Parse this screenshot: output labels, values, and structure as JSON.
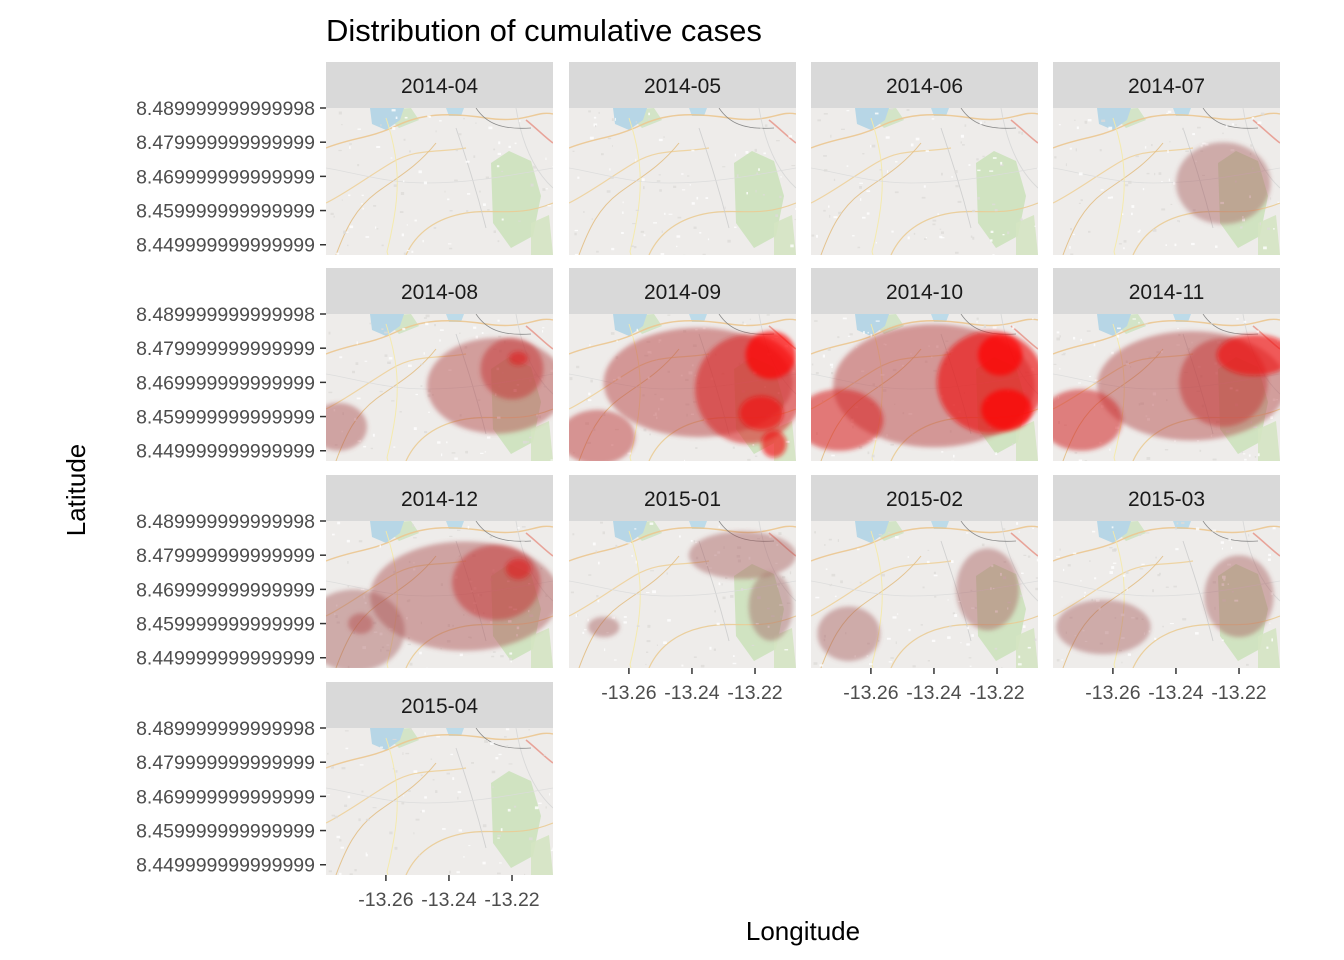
{
  "chart_data": {
    "type": "heatmap",
    "title": "Distribution of cumulative cases",
    "xlabel": "Longitude",
    "ylabel": "Latitude",
    "xlim": [
      -13.279,
      -13.207
    ],
    "ylim": [
      8.447,
      8.49
    ],
    "x_ticks": [
      -13.26,
      -13.24,
      -13.22
    ],
    "x_tick_labels": [
      "-13.26",
      "-13.24",
      "-13.22"
    ],
    "y_ticks": [
      8.489999999999998,
      8.479999999999999,
      8.469999999999999,
      8.459999999999999,
      8.45
    ],
    "y_tick_labels": [
      "8.489999999999998",
      "8.479999999999999",
      "8.469999999999999",
      "8.459999999999999",
      "8.449999999999999"
    ],
    "grid": false,
    "background": "map tiles",
    "fill_scale": {
      "low": "#808080",
      "high": "#ff0000"
    },
    "panels": [
      {
        "label": "2014-04",
        "blobs": []
      },
      {
        "label": "2014-05",
        "blobs": []
      },
      {
        "label": "2014-06",
        "blobs": []
      },
      {
        "label": "2014-07",
        "blobs": [
          {
            "x": -13.225,
            "y": 8.468,
            "rx": 0.015,
            "ry": 0.012,
            "level": 0.3
          }
        ]
      },
      {
        "label": "2014-08",
        "blobs": [
          {
            "x": -13.275,
            "y": 8.457,
            "rx": 0.009,
            "ry": 0.007,
            "level": 0.35
          },
          {
            "x": -13.225,
            "y": 8.469,
            "rx": 0.022,
            "ry": 0.014,
            "level": 0.4
          },
          {
            "x": -13.22,
            "y": 8.474,
            "rx": 0.01,
            "ry": 0.009,
            "level": 0.55
          },
          {
            "x": -13.218,
            "y": 8.477,
            "rx": 0.003,
            "ry": 0.002,
            "level": 0.75
          }
        ]
      },
      {
        "label": "2014-09",
        "blobs": [
          {
            "x": -13.27,
            "y": 8.454,
            "rx": 0.012,
            "ry": 0.008,
            "level": 0.5
          },
          {
            "x": -13.238,
            "y": 8.47,
            "rx": 0.03,
            "ry": 0.016,
            "level": 0.45
          },
          {
            "x": -13.222,
            "y": 8.468,
            "rx": 0.017,
            "ry": 0.016,
            "level": 0.7
          },
          {
            "x": -13.215,
            "y": 8.478,
            "rx": 0.008,
            "ry": 0.007,
            "level": 1.0
          },
          {
            "x": -13.218,
            "y": 8.461,
            "rx": 0.007,
            "ry": 0.005,
            "level": 0.9
          },
          {
            "x": -13.214,
            "y": 8.452,
            "rx": 0.004,
            "ry": 0.004,
            "level": 0.9
          }
        ]
      },
      {
        "label": "2014-10",
        "blobs": [
          {
            "x": -13.27,
            "y": 8.459,
            "rx": 0.014,
            "ry": 0.009,
            "level": 0.7
          },
          {
            "x": -13.24,
            "y": 8.469,
            "rx": 0.032,
            "ry": 0.018,
            "level": 0.45
          },
          {
            "x": -13.222,
            "y": 8.47,
            "rx": 0.017,
            "ry": 0.015,
            "level": 0.85
          },
          {
            "x": -13.219,
            "y": 8.478,
            "rx": 0.007,
            "ry": 0.006,
            "level": 1.0
          },
          {
            "x": -13.217,
            "y": 8.462,
            "rx": 0.008,
            "ry": 0.006,
            "level": 1.0
          }
        ]
      },
      {
        "label": "2014-11",
        "blobs": [
          {
            "x": -13.27,
            "y": 8.459,
            "rx": 0.013,
            "ry": 0.009,
            "level": 0.65
          },
          {
            "x": -13.235,
            "y": 8.469,
            "rx": 0.03,
            "ry": 0.016,
            "level": 0.4
          },
          {
            "x": -13.225,
            "y": 8.47,
            "rx": 0.014,
            "ry": 0.013,
            "level": 0.55
          },
          {
            "x": -13.215,
            "y": 8.478,
            "rx": 0.012,
            "ry": 0.006,
            "level": 0.9
          }
        ]
      },
      {
        "label": "2014-12",
        "blobs": [
          {
            "x": -13.27,
            "y": 8.458,
            "rx": 0.016,
            "ry": 0.012,
            "level": 0.3
          },
          {
            "x": -13.235,
            "y": 8.468,
            "rx": 0.03,
            "ry": 0.016,
            "level": 0.35
          },
          {
            "x": -13.225,
            "y": 8.472,
            "rx": 0.014,
            "ry": 0.011,
            "level": 0.55
          },
          {
            "x": -13.218,
            "y": 8.476,
            "rx": 0.004,
            "ry": 0.003,
            "level": 0.75
          },
          {
            "x": -13.268,
            "y": 8.46,
            "rx": 0.004,
            "ry": 0.003,
            "level": 0.4
          }
        ]
      },
      {
        "label": "2015-01",
        "blobs": [
          {
            "x": -13.268,
            "y": 8.459,
            "rx": 0.005,
            "ry": 0.003,
            "level": 0.3
          },
          {
            "x": -13.224,
            "y": 8.48,
            "rx": 0.017,
            "ry": 0.007,
            "level": 0.3
          },
          {
            "x": -13.215,
            "y": 8.465,
            "rx": 0.007,
            "ry": 0.01,
            "level": 0.25
          }
        ]
      },
      {
        "label": "2015-02",
        "blobs": [
          {
            "x": -13.267,
            "y": 8.457,
            "rx": 0.01,
            "ry": 0.008,
            "level": 0.3
          },
          {
            "x": -13.223,
            "y": 8.47,
            "rx": 0.01,
            "ry": 0.012,
            "level": 0.3
          }
        ]
      },
      {
        "label": "2015-03",
        "blobs": [
          {
            "x": -13.263,
            "y": 8.459,
            "rx": 0.015,
            "ry": 0.008,
            "level": 0.3
          },
          {
            "x": -13.22,
            "y": 8.468,
            "rx": 0.011,
            "ry": 0.012,
            "level": 0.3
          }
        ]
      },
      {
        "label": "2015-04",
        "blobs": []
      }
    ]
  }
}
